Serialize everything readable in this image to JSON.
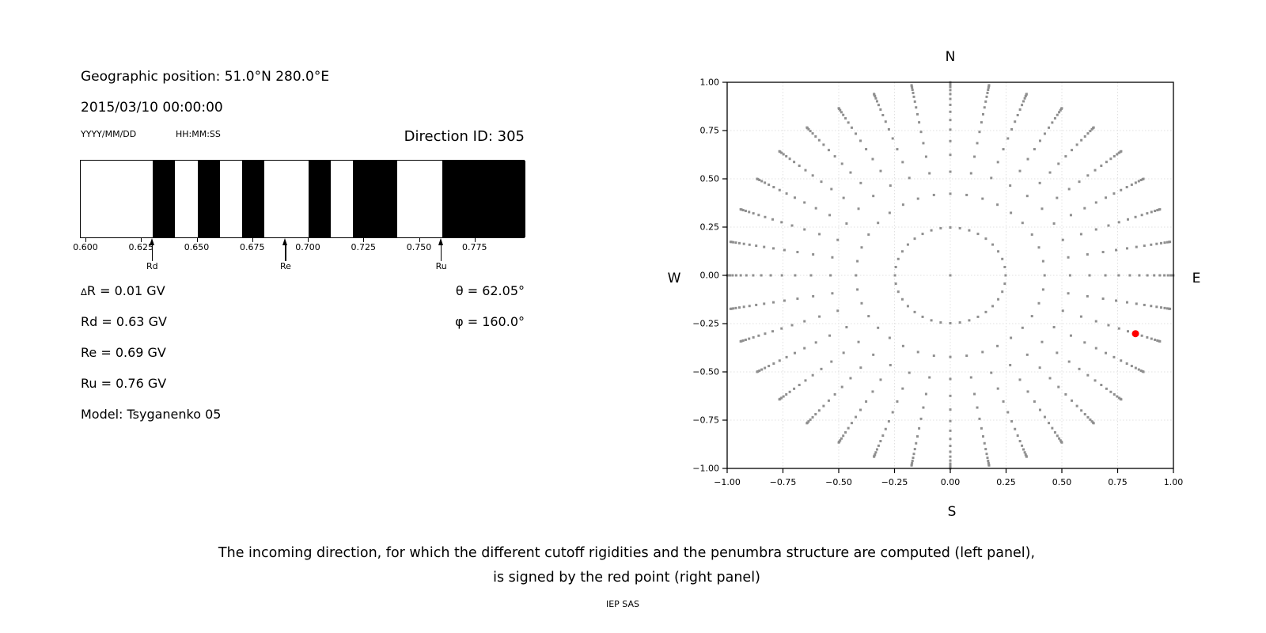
{
  "left_panel": {
    "geo_position": "Geographic position: 51.0°N 280.0°E",
    "datetime": "2015/03/10 00:00:00",
    "date_format_label": "YYYY/MM/DD",
    "time_format_label": "HH:MM:SS",
    "direction_id": "Direction ID: 305",
    "info_lines": {
      "delta": "ΔR = 0.01 GV",
      "rd": "Rd = 0.63 GV",
      "re": "Re = 0.69 GV",
      "ru": "Ru = 0.76 GV",
      "model": "Model: Tsyganenko 05"
    },
    "theta": "θ = 62.05°",
    "phi": "φ = 160.0°"
  },
  "caption": {
    "line1": "The incoming direction, for which the different cutoff rigidities and the penumbra structure are computed (left panel),",
    "line2": "is signed by the red point (right panel)",
    "credit": "IEP SAS"
  },
  "chart_data": [
    {
      "type": "bar",
      "title": "penumbra structure (black = allowed rigidity bands)",
      "xlim": [
        0.5975,
        0.7975
      ],
      "xtick_values": [
        0.6,
        0.625,
        0.65,
        0.675,
        0.7,
        0.725,
        0.75,
        0.775
      ],
      "xtick_labels": [
        "0.600",
        "0.625",
        "0.650",
        "0.675",
        "0.700",
        "0.725",
        "0.750",
        "0.775"
      ],
      "delta_r_gv": 0.01,
      "black_bands_gv": [
        [
          0.63,
          0.64
        ],
        [
          0.65,
          0.66
        ],
        [
          0.67,
          0.68
        ],
        [
          0.7,
          0.71
        ],
        [
          0.72,
          0.74
        ],
        [
          0.76,
          0.7975
        ]
      ],
      "markers": [
        {
          "label": "Rd",
          "value_gv": 0.63
        },
        {
          "label": "Re",
          "value_gv": 0.69
        },
        {
          "label": "Ru",
          "value_gv": 0.76
        }
      ],
      "bar_color": "#000000"
    },
    {
      "type": "scatter",
      "title": "incoming direction grid, r = sin(zenith), azimuth step 10°",
      "xlim": [
        -1,
        1
      ],
      "ylim": [
        -1,
        1
      ],
      "xtick_values": [
        -1.0,
        -0.75,
        -0.5,
        -0.25,
        0.0,
        0.25,
        0.5,
        0.75,
        1.0
      ],
      "xtick_labels": [
        "−1.00",
        "−0.75",
        "−0.50",
        "−0.25",
        "0.00",
        "0.25",
        "0.50",
        "0.75",
        "1.00"
      ],
      "ytick_values": [
        1.0,
        0.75,
        0.5,
        0.25,
        0.0,
        -0.25,
        -0.5,
        -0.75,
        -1.0
      ],
      "ytick_labels": [
        "1.00",
        "0.75",
        "0.50",
        "0.25",
        "0.00",
        "−0.25",
        "−0.50",
        "−0.75",
        "−1.00"
      ],
      "grid_values": [
        -0.75,
        -0.5,
        -0.25,
        0,
        0.25,
        0.5,
        0.75
      ],
      "grid_on": true,
      "compass": {
        "top": "N",
        "bottom": "S",
        "left": "W",
        "right": "E"
      },
      "ring_radii": [
        0.248,
        0.4227,
        0.5368,
        0.6242,
        0.6953,
        0.7546,
        0.8047,
        0.8472,
        0.8833,
        0.9138,
        0.9391,
        0.9596,
        0.9758,
        0.9877,
        0.9956,
        0.9995
      ],
      "azimuth_step_deg": 10,
      "center_dot": true,
      "dot_color": "#8f8f8f",
      "red_point": {
        "x": 0.83,
        "y": -0.302,
        "screen_angle_deg": 340,
        "ring_radius": 0.8833,
        "zenith_deg": 62.05,
        "azimuth_deg": 160.0,
        "color": "#ff0000"
      }
    }
  ]
}
